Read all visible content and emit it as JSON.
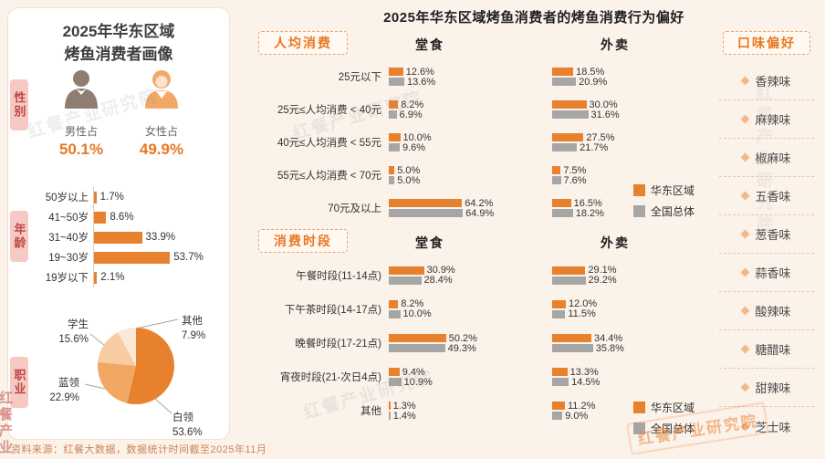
{
  "meta": {
    "watermark": "红餐产业研究院",
    "watermark_red": "红餐产业",
    "source_note": "资料来源：红餐大数据，数据统计时间截至2025年11月"
  },
  "left_panel": {
    "title_line1": "2025年华东区域",
    "title_line2": "烤鱼消费者画像",
    "gender": {
      "tab": "性别",
      "male": {
        "label": "男性占",
        "value": "50.1%"
      },
      "female": {
        "label": "女性占",
        "value": "49.9%"
      }
    },
    "age": {
      "tab": "年龄",
      "rows": [
        {
          "label": "50岁以上",
          "value": 1.7
        },
        {
          "label": "41~50岁",
          "value": 8.6
        },
        {
          "label": "31~40岁",
          "value": 33.9
        },
        {
          "label": "19~30岁",
          "value": 53.7
        },
        {
          "label": "19岁以下",
          "value": 2.1
        }
      ]
    },
    "occupation": {
      "tab": "职业",
      "slices": [
        {
          "label": "白领",
          "pct": 53.6,
          "pct_label": "53.6%",
          "color": "#E8812E"
        },
        {
          "label": "蓝领",
          "pct": 22.9,
          "pct_label": "22.9%",
          "color": "#F2A763"
        },
        {
          "label": "学生",
          "pct": 15.6,
          "pct_label": "15.6%",
          "color": "#F7CCA3"
        },
        {
          "label": "其他",
          "pct": 7.9,
          "pct_label": "7.9%",
          "color": "#FBE8D5"
        }
      ]
    }
  },
  "main": {
    "title": "2025年华东区域烤鱼消费者的烤鱼消费行为偏好",
    "legend": {
      "east": "华东区域",
      "national": "全国总体"
    },
    "colors": {
      "east": "#E8812E",
      "national": "#A6A6A6"
    },
    "per_capita": {
      "tag": "人均消费",
      "dine_header": "堂食",
      "takeout_header": "外卖",
      "rows": [
        {
          "label": "25元以下",
          "dine": [
            12.6,
            13.6
          ],
          "takeout": [
            18.5,
            20.9
          ]
        },
        {
          "label": "25元≤人均消费 < 40元",
          "dine": [
            8.2,
            6.9
          ],
          "takeout": [
            30.0,
            31.6
          ]
        },
        {
          "label": "40元≤人均消费 < 55元",
          "dine": [
            10.0,
            9.6
          ],
          "takeout": [
            27.5,
            21.7
          ]
        },
        {
          "label": "55元≤人均消费 < 70元",
          "dine": [
            5.0,
            5.0
          ],
          "takeout": [
            7.5,
            7.6
          ]
        },
        {
          "label": "70元及以上",
          "dine": [
            64.2,
            64.9
          ],
          "takeout": [
            16.5,
            18.2
          ]
        }
      ]
    },
    "time_slots": {
      "tag": "消费时段",
      "dine_header": "堂食",
      "takeout_header": "外卖",
      "rows": [
        {
          "label": "午餐时段(11-14点)",
          "dine": [
            30.9,
            28.4
          ],
          "takeout": [
            29.1,
            29.2
          ]
        },
        {
          "label": "下午茶时段(14-17点)",
          "dine": [
            8.2,
            10.0
          ],
          "takeout": [
            12.0,
            11.5
          ]
        },
        {
          "label": "晚餐时段(17-21点)",
          "dine": [
            50.2,
            49.3
          ],
          "takeout": [
            34.4,
            35.8
          ]
        },
        {
          "label": "宵夜时段(21-次日4点)",
          "dine": [
            9.4,
            10.9
          ],
          "takeout": [
            13.3,
            14.5
          ]
        },
        {
          "label": "其他",
          "dine": [
            1.3,
            1.4
          ],
          "takeout": [
            11.2,
            9.0
          ]
        }
      ]
    },
    "flavors": {
      "tag": "口味偏好",
      "items": [
        "香辣味",
        "麻辣味",
        "椒麻味",
        "五香味",
        "葱香味",
        "蒜香味",
        "酸辣味",
        "糖醋味",
        "甜辣味",
        "芝士味"
      ]
    }
  },
  "chart_data": [
    {
      "type": "pie",
      "title": "性别",
      "categories": [
        "男性占",
        "女性占"
      ],
      "values": [
        50.1,
        49.9
      ],
      "unit": "%"
    },
    {
      "type": "bar",
      "title": "年龄",
      "orientation": "horizontal",
      "categories": [
        "50岁以上",
        "41~50岁",
        "31~40岁",
        "19~30岁",
        "19岁以下"
      ],
      "values": [
        1.7,
        8.6,
        33.9,
        53.7,
        2.1
      ],
      "unit": "%"
    },
    {
      "type": "pie",
      "title": "职业",
      "categories": [
        "白领",
        "蓝领",
        "学生",
        "其他"
      ],
      "values": [
        53.6,
        22.9,
        15.6,
        7.9
      ],
      "unit": "%"
    },
    {
      "type": "bar",
      "title": "人均消费-堂食",
      "orientation": "horizontal",
      "legend_position": "right",
      "categories": [
        "25元以下",
        "25元≤人均消费 < 40元",
        "40元≤人均消费 < 55元",
        "55元≤人均消费 < 70元",
        "70元及以上"
      ],
      "series": [
        {
          "name": "华东区域",
          "values": [
            12.6,
            8.2,
            10.0,
            5.0,
            64.2
          ]
        },
        {
          "name": "全国总体",
          "values": [
            13.6,
            6.9,
            9.6,
            5.0,
            64.9
          ]
        }
      ],
      "unit": "%"
    },
    {
      "type": "bar",
      "title": "人均消费-外卖",
      "orientation": "horizontal",
      "legend_position": "right",
      "categories": [
        "25元以下",
        "25元≤人均消费 < 40元",
        "40元≤人均消费 < 55元",
        "55元≤人均消费 < 70元",
        "70元及以上"
      ],
      "series": [
        {
          "name": "华东区域",
          "values": [
            18.5,
            30.0,
            27.5,
            7.5,
            16.5
          ]
        },
        {
          "name": "全国总体",
          "values": [
            20.9,
            31.6,
            21.7,
            7.6,
            18.2
          ]
        }
      ],
      "unit": "%"
    },
    {
      "type": "bar",
      "title": "消费时段-堂食",
      "orientation": "horizontal",
      "legend_position": "right",
      "categories": [
        "午餐时段(11-14点)",
        "下午茶时段(14-17点)",
        "晚餐时段(17-21点)",
        "宵夜时段(21-次日4点)",
        "其他"
      ],
      "series": [
        {
          "name": "华东区域",
          "values": [
            30.9,
            8.2,
            50.2,
            9.4,
            1.3
          ]
        },
        {
          "name": "全国总体",
          "values": [
            28.4,
            10.0,
            49.3,
            10.9,
            1.4
          ]
        }
      ],
      "unit": "%"
    },
    {
      "type": "bar",
      "title": "消费时段-外卖",
      "orientation": "horizontal",
      "legend_position": "right",
      "categories": [
        "午餐时段(11-14点)",
        "下午茶时段(14-17点)",
        "晚餐时段(17-21点)",
        "宵夜时段(21-次日4点)",
        "其他"
      ],
      "series": [
        {
          "name": "华东区域",
          "values": [
            29.1,
            12.0,
            34.4,
            13.3,
            11.2
          ]
        },
        {
          "name": "全国总体",
          "values": [
            29.2,
            11.5,
            35.8,
            14.5,
            9.0
          ]
        }
      ],
      "unit": "%"
    }
  ]
}
